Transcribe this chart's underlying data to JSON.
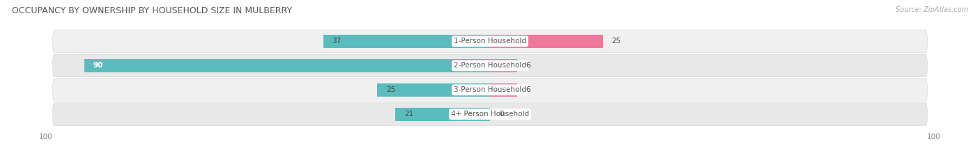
{
  "title": "OCCUPANCY BY OWNERSHIP BY HOUSEHOLD SIZE IN MULBERRY",
  "source": "Source: ZipAtlas.com",
  "categories": [
    "1-Person Household",
    "2-Person Household",
    "3-Person Household",
    "4+ Person Household"
  ],
  "owner_values": [
    37,
    90,
    25,
    21
  ],
  "renter_values": [
    25,
    6,
    6,
    0
  ],
  "max_val": 100,
  "owner_color": "#5bbcbe",
  "renter_color": "#f07898",
  "row_bg_color_odd": "#f0f0f0",
  "row_bg_color_even": "#e8e8e8",
  "label_bg_color": "#ffffff",
  "title_fontsize": 9,
  "bar_label_fontsize": 7.5,
  "tick_fontsize": 7.5,
  "legend_fontsize": 7.5,
  "source_fontsize": 7,
  "cat_label_fontsize": 7.5,
  "axis_label": "100"
}
